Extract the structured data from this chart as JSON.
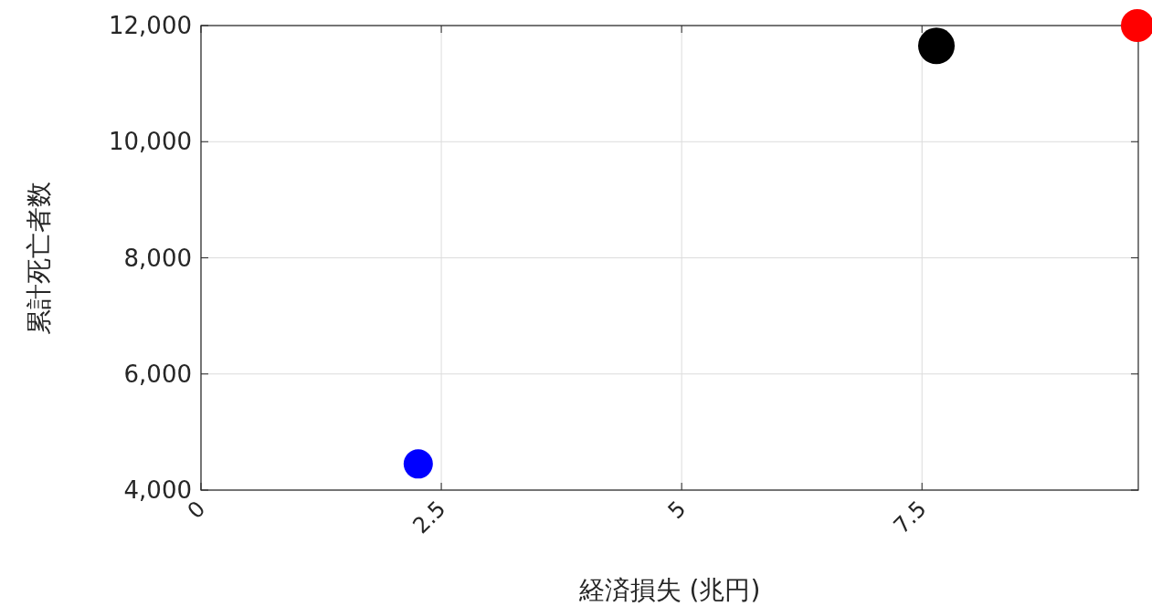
{
  "chart_data": {
    "type": "bubble",
    "xlabel": "経済損失 (兆円)",
    "ylabel": "累計死亡者数",
    "x": [
      2.26,
      7.65,
      9.74
    ],
    "series": [
      {
        "values": [
          4450,
          11650,
          12000
        ],
        "colors": [
          "#0000ff",
          "#000000",
          "#ff0000"
        ],
        "sizes": [
          0.64,
          1,
          0.81
        ]
      }
    ],
    "xlim": [
      0,
      9.75
    ],
    "xticks": [
      0,
      2.5,
      5,
      7.5
    ],
    "ylim": [
      4000,
      12000
    ],
    "yticks": [
      {
        "value": 4000,
        "label": "4,000"
      },
      {
        "value": 6000,
        "label": "6,000"
      },
      {
        "value": 8000,
        "label": "8,000"
      },
      {
        "value": 10000,
        "label": "10,000"
      },
      {
        "value": 12000,
        "label": "12,000"
      }
    ],
    "grid": true
  }
}
